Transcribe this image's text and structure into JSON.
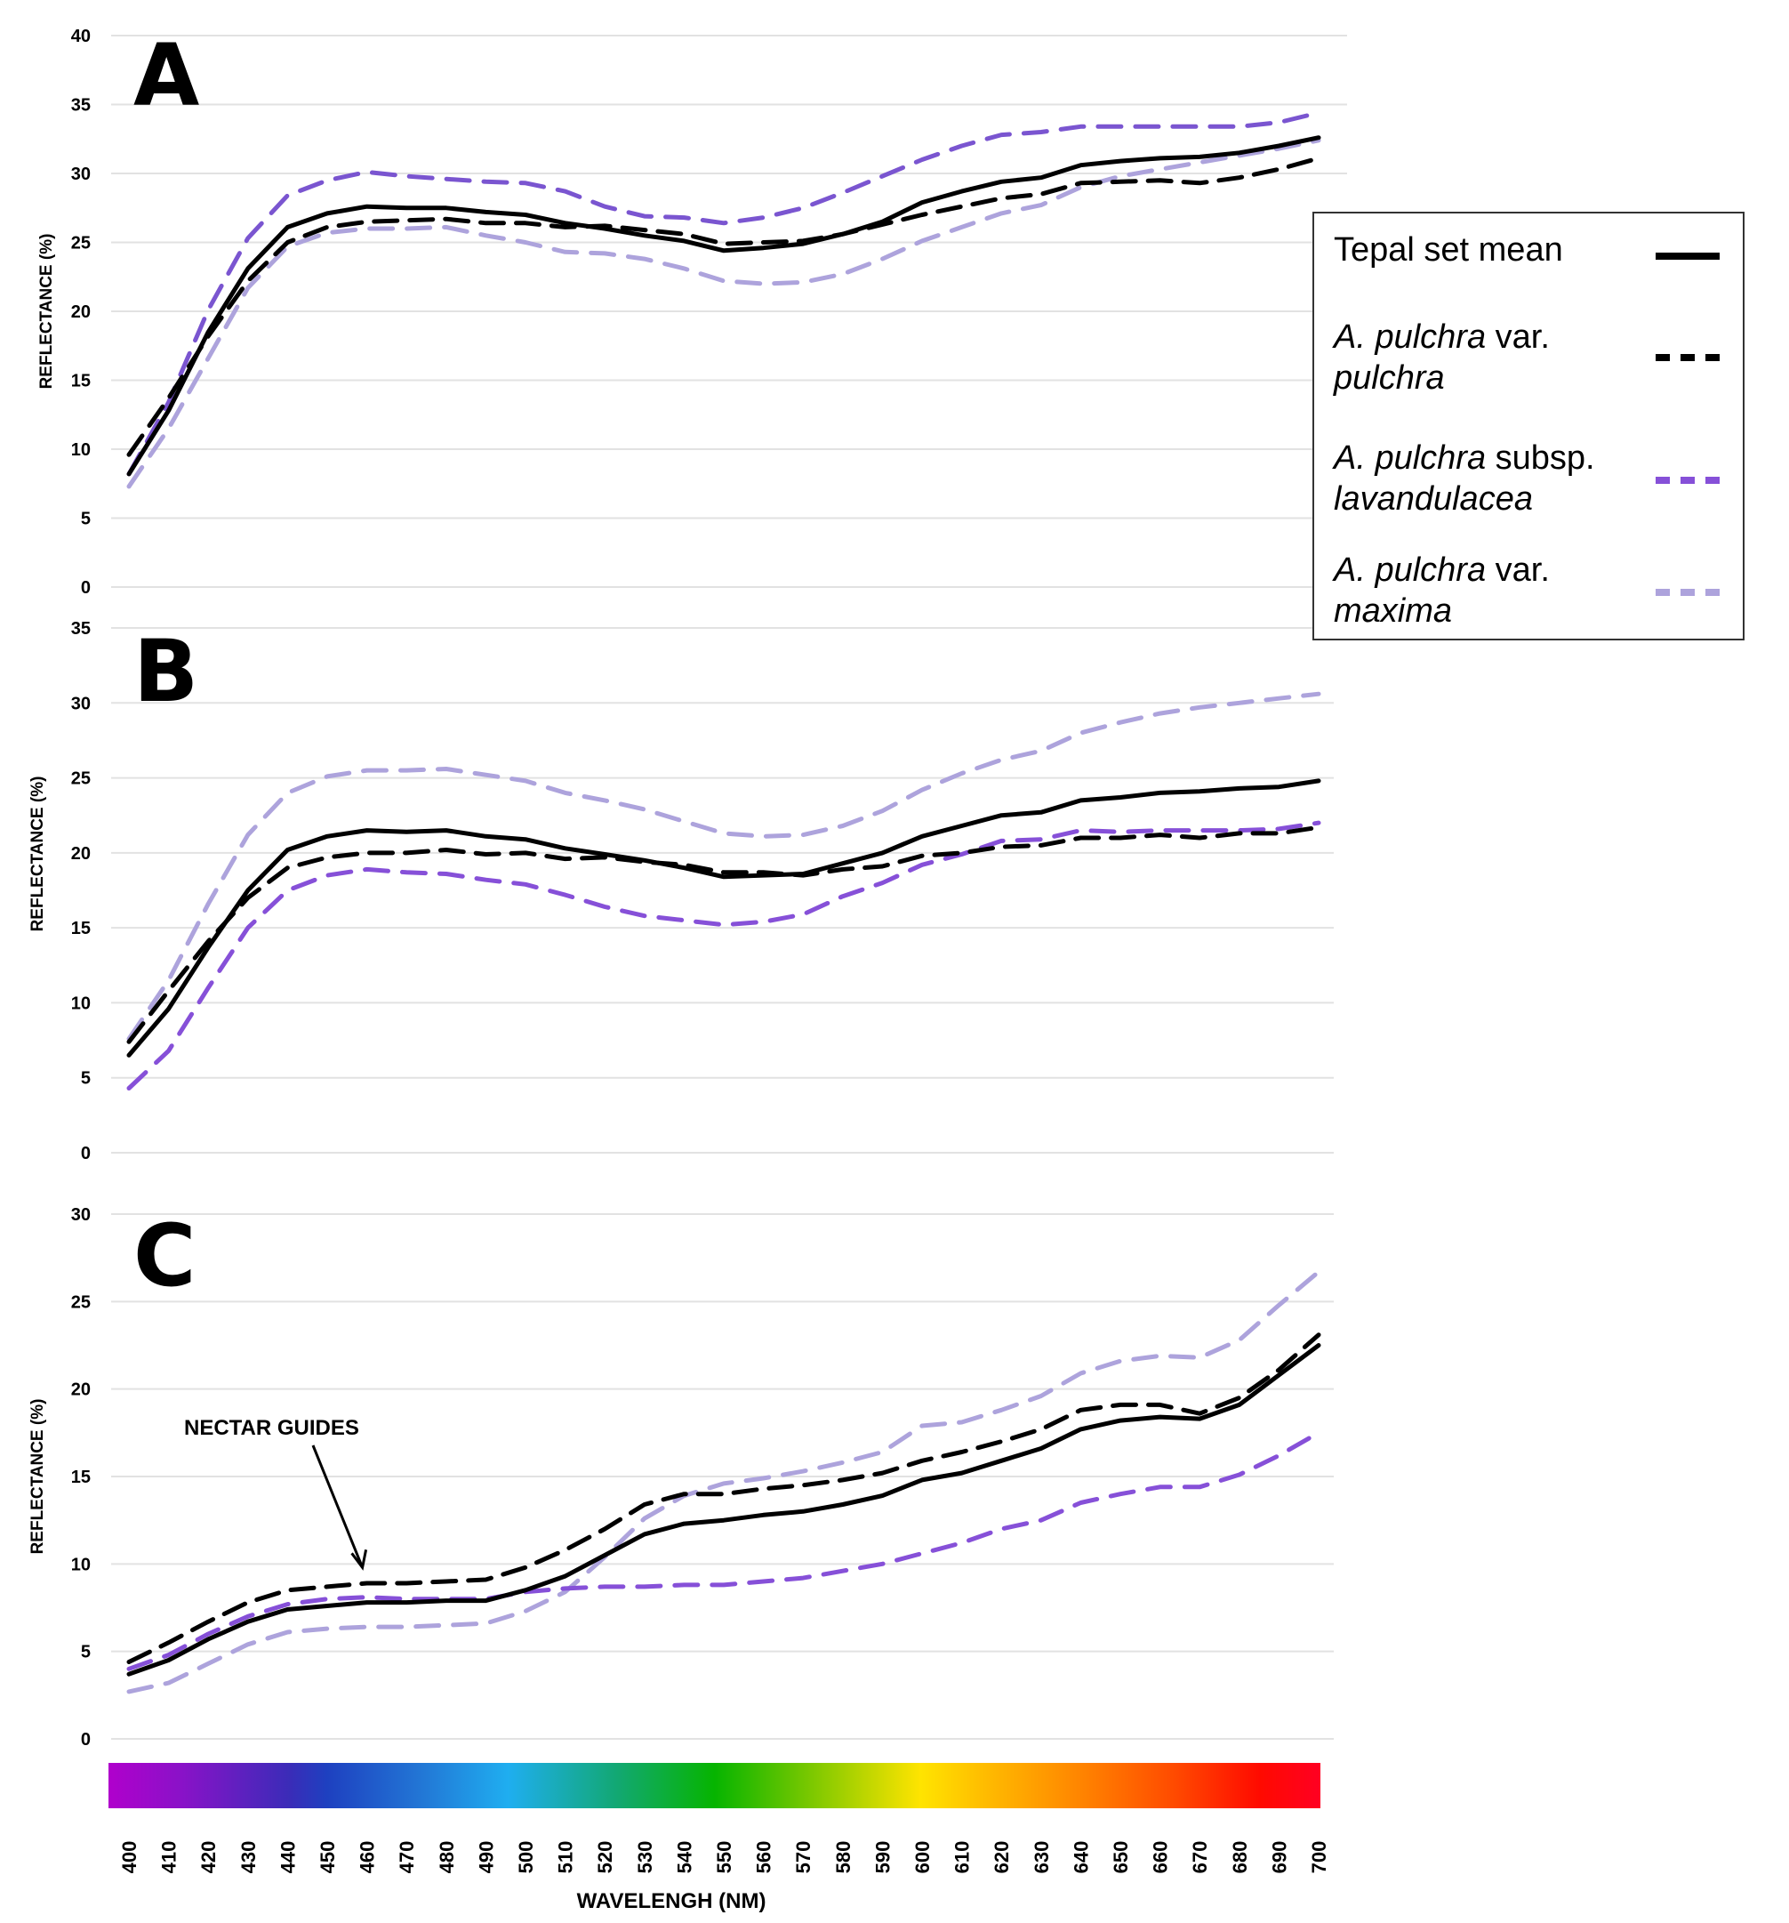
{
  "figure": {
    "legend": {
      "items": [
        {
          "label_parts": [
            {
              "text": "Tepal set mean",
              "italic": false
            }
          ],
          "line2": [],
          "color": "#000000",
          "style": "solid"
        },
        {
          "label_parts": [
            {
              "text": "A. pulchra",
              "italic": true
            },
            {
              "text": " var.",
              "italic": false
            }
          ],
          "line2": [
            {
              "text": "pulchra",
              "italic": true
            }
          ],
          "color": "#000000",
          "style": "dashed"
        },
        {
          "label_parts": [
            {
              "text": "A. pulchra",
              "italic": true
            },
            {
              "text": " subsp.",
              "italic": false
            }
          ],
          "line2": [
            {
              "text": "lavandulacea",
              "italic": true
            }
          ],
          "color": "#8650D8",
          "style": "dashed"
        },
        {
          "label_parts": [
            {
              "text": "A. pulchra",
              "italic": true
            },
            {
              "text": " var.",
              "italic": false
            }
          ],
          "line2": [
            {
              "text": "maxima",
              "italic": true
            }
          ],
          "color": "#ADA3DC",
          "style": "dashed"
        }
      ]
    },
    "xlabel": "WAVELENGH (NM)",
    "spectrum_bar": "visible-light-spectrum-400-700nm"
  },
  "chart_data": [
    {
      "type": "line",
      "panel": "A",
      "title": "",
      "xlabel": "WAVELENGH (NM)",
      "ylabel": "REFLECTANCE (%)",
      "ylim": [
        0,
        40
      ],
      "yticks": [
        0,
        5,
        10,
        15,
        20,
        25,
        30,
        35,
        40
      ],
      "grid": true,
      "legend_position": "right",
      "x": [
        400,
        410,
        420,
        430,
        440,
        450,
        460,
        470,
        480,
        490,
        500,
        510,
        520,
        530,
        540,
        550,
        560,
        570,
        580,
        590,
        600,
        610,
        620,
        630,
        640,
        650,
        660,
        670,
        680,
        690,
        700
      ],
      "series": [
        {
          "name": "Tepal set mean",
          "color": "#000000",
          "style": "solid",
          "values": [
            8.2,
            12.8,
            18.5,
            23.1,
            26.1,
            27.1,
            27.6,
            27.5,
            27.5,
            27.2,
            27.0,
            26.4,
            26.0,
            25.5,
            25.1,
            24.4,
            24.6,
            24.9,
            25.6,
            26.5,
            27.9,
            28.7,
            29.4,
            29.7,
            30.6,
            30.9,
            31.1,
            31.2,
            31.5,
            32.0,
            32.6
          ]
        },
        {
          "name": "A. pulchra var. pulchra",
          "color": "#000000",
          "style": "dashed",
          "values": [
            9.6,
            13.7,
            18.2,
            22.2,
            25.0,
            26.1,
            26.5,
            26.6,
            26.7,
            26.4,
            26.4,
            26.1,
            26.2,
            25.9,
            25.6,
            24.9,
            25.0,
            25.1,
            25.6,
            26.3,
            27.0,
            27.6,
            28.2,
            28.5,
            29.3,
            29.4,
            29.5,
            29.3,
            29.7,
            30.3,
            31.1
          ]
        },
        {
          "name": "A. pulchra subsp. lavandulacea",
          "color": "#7A55D0",
          "style": "dashed",
          "values": [
            8.2,
            13.4,
            20.1,
            25.3,
            28.4,
            29.5,
            30.1,
            29.8,
            29.6,
            29.4,
            29.3,
            28.7,
            27.6,
            26.9,
            26.8,
            26.4,
            26.8,
            27.5,
            28.6,
            29.8,
            31.0,
            32.0,
            32.8,
            33.0,
            33.4,
            33.4,
            33.4,
            33.4,
            33.4,
            33.7,
            34.4
          ]
        },
        {
          "name": "A. pulchra var. maxima",
          "color": "#ADA3DC",
          "style": "dashed",
          "values": [
            7.3,
            11.5,
            16.6,
            21.7,
            24.7,
            25.7,
            26.0,
            26.0,
            26.1,
            25.5,
            25.0,
            24.3,
            24.2,
            23.8,
            23.1,
            22.2,
            22.0,
            22.1,
            22.7,
            23.8,
            25.1,
            26.1,
            27.1,
            27.7,
            29.0,
            29.8,
            30.3,
            30.8,
            31.3,
            31.8,
            32.4
          ]
        }
      ]
    },
    {
      "type": "line",
      "panel": "B",
      "title": "",
      "xlabel": "WAVELENGH (NM)",
      "ylabel": "REFLECTANCE (%)",
      "ylim": [
        0,
        35
      ],
      "yticks": [
        0,
        5,
        10,
        15,
        20,
        25,
        30,
        35
      ],
      "grid": true,
      "x": [
        400,
        410,
        420,
        430,
        440,
        450,
        460,
        470,
        480,
        490,
        500,
        510,
        520,
        530,
        540,
        550,
        560,
        570,
        580,
        590,
        600,
        610,
        620,
        630,
        640,
        650,
        660,
        670,
        680,
        690,
        700
      ],
      "series": [
        {
          "name": "Tepal set mean",
          "color": "#000000",
          "style": "solid",
          "values": [
            6.5,
            9.6,
            13.7,
            17.5,
            20.2,
            21.1,
            21.5,
            21.4,
            21.5,
            21.1,
            20.9,
            20.3,
            19.9,
            19.5,
            19.0,
            18.4,
            18.5,
            18.6,
            19.3,
            20.0,
            21.1,
            21.8,
            22.5,
            22.7,
            23.5,
            23.7,
            24.0,
            24.1,
            24.3,
            24.4,
            24.8
          ]
        },
        {
          "name": "A. pulchra var. pulchra",
          "color": "#000000",
          "style": "dashed",
          "values": [
            7.4,
            10.8,
            14.1,
            17.0,
            19.0,
            19.7,
            20.0,
            20.0,
            20.2,
            19.9,
            20.0,
            19.6,
            19.7,
            19.4,
            19.2,
            18.7,
            18.7,
            18.5,
            18.9,
            19.1,
            19.8,
            20.0,
            20.4,
            20.5,
            21.0,
            21.0,
            21.2,
            21.0,
            21.3,
            21.3,
            21.7
          ]
        },
        {
          "name": "A. pulchra subsp. lavandulacea",
          "color": "#8650D8",
          "style": "dashed",
          "values": [
            4.3,
            6.8,
            11.0,
            15.0,
            17.5,
            18.5,
            18.9,
            18.7,
            18.6,
            18.2,
            17.9,
            17.2,
            16.4,
            15.8,
            15.5,
            15.2,
            15.4,
            15.9,
            17.1,
            18.0,
            19.2,
            19.9,
            20.8,
            20.9,
            21.5,
            21.4,
            21.5,
            21.5,
            21.5,
            21.6,
            22.0
          ]
        },
        {
          "name": "A. pulchra var. maxima",
          "color": "#ADA3DC",
          "style": "dashed",
          "values": [
            7.6,
            11.5,
            16.6,
            21.2,
            24.0,
            25.1,
            25.5,
            25.5,
            25.6,
            25.2,
            24.8,
            24.0,
            23.5,
            22.9,
            22.1,
            21.3,
            21.1,
            21.2,
            21.8,
            22.8,
            24.2,
            25.3,
            26.2,
            26.8,
            28.0,
            28.7,
            29.3,
            29.7,
            30.0,
            30.3,
            30.6
          ]
        }
      ]
    },
    {
      "type": "line",
      "panel": "C",
      "title": "",
      "xlabel": "WAVELENGH (NM)",
      "ylabel": "REFLECTANCE (%)",
      "ylim": [
        0,
        30
      ],
      "yticks": [
        0,
        5,
        10,
        15,
        20,
        25,
        30
      ],
      "grid": true,
      "annotations": [
        {
          "text": "NECTAR GUIDES",
          "arrow_to": {
            "x": 460,
            "y": 10.0
          }
        }
      ],
      "x": [
        400,
        410,
        420,
        430,
        440,
        450,
        460,
        470,
        480,
        490,
        500,
        510,
        520,
        530,
        540,
        550,
        560,
        570,
        580,
        590,
        600,
        610,
        620,
        630,
        640,
        650,
        660,
        670,
        680,
        690,
        700
      ],
      "series": [
        {
          "name": "Tepal set mean",
          "color": "#000000",
          "style": "solid",
          "values": [
            3.7,
            4.5,
            5.7,
            6.7,
            7.4,
            7.6,
            7.8,
            7.8,
            7.9,
            7.9,
            8.5,
            9.3,
            10.5,
            11.7,
            12.3,
            12.5,
            12.8,
            13.0,
            13.4,
            13.9,
            14.8,
            15.2,
            15.9,
            16.6,
            17.7,
            18.2,
            18.4,
            18.3,
            19.1,
            20.8,
            22.5
          ]
        },
        {
          "name": "A. pulchra var. pulchra",
          "color": "#000000",
          "style": "dashed",
          "values": [
            4.4,
            5.5,
            6.7,
            7.8,
            8.5,
            8.7,
            8.9,
            8.9,
            9.0,
            9.1,
            9.8,
            10.8,
            12.0,
            13.4,
            14.0,
            14.0,
            14.3,
            14.5,
            14.8,
            15.2,
            15.9,
            16.4,
            17.0,
            17.7,
            18.8,
            19.1,
            19.1,
            18.6,
            19.5,
            21.1,
            23.1
          ]
        },
        {
          "name": "A. pulchra subsp. lavandulacea",
          "color": "#8650D8",
          "style": "dashed",
          "values": [
            4.0,
            4.8,
            6.0,
            7.0,
            7.7,
            8.0,
            8.1,
            8.0,
            8.0,
            8.0,
            8.4,
            8.6,
            8.7,
            8.7,
            8.8,
            8.8,
            9.0,
            9.2,
            9.6,
            10.0,
            10.6,
            11.2,
            12.0,
            12.5,
            13.5,
            14.0,
            14.4,
            14.4,
            15.1,
            16.2,
            17.5
          ]
        },
        {
          "name": "A. pulchra var. maxima",
          "color": "#ADA3DC",
          "style": "dashed",
          "values": [
            2.7,
            3.2,
            4.3,
            5.4,
            6.1,
            6.3,
            6.4,
            6.4,
            6.5,
            6.6,
            7.3,
            8.4,
            10.4,
            12.6,
            13.9,
            14.6,
            14.9,
            15.3,
            15.8,
            16.4,
            17.9,
            18.1,
            18.8,
            19.6,
            20.9,
            21.6,
            21.9,
            21.8,
            22.8,
            24.8,
            26.7
          ]
        }
      ]
    }
  ]
}
